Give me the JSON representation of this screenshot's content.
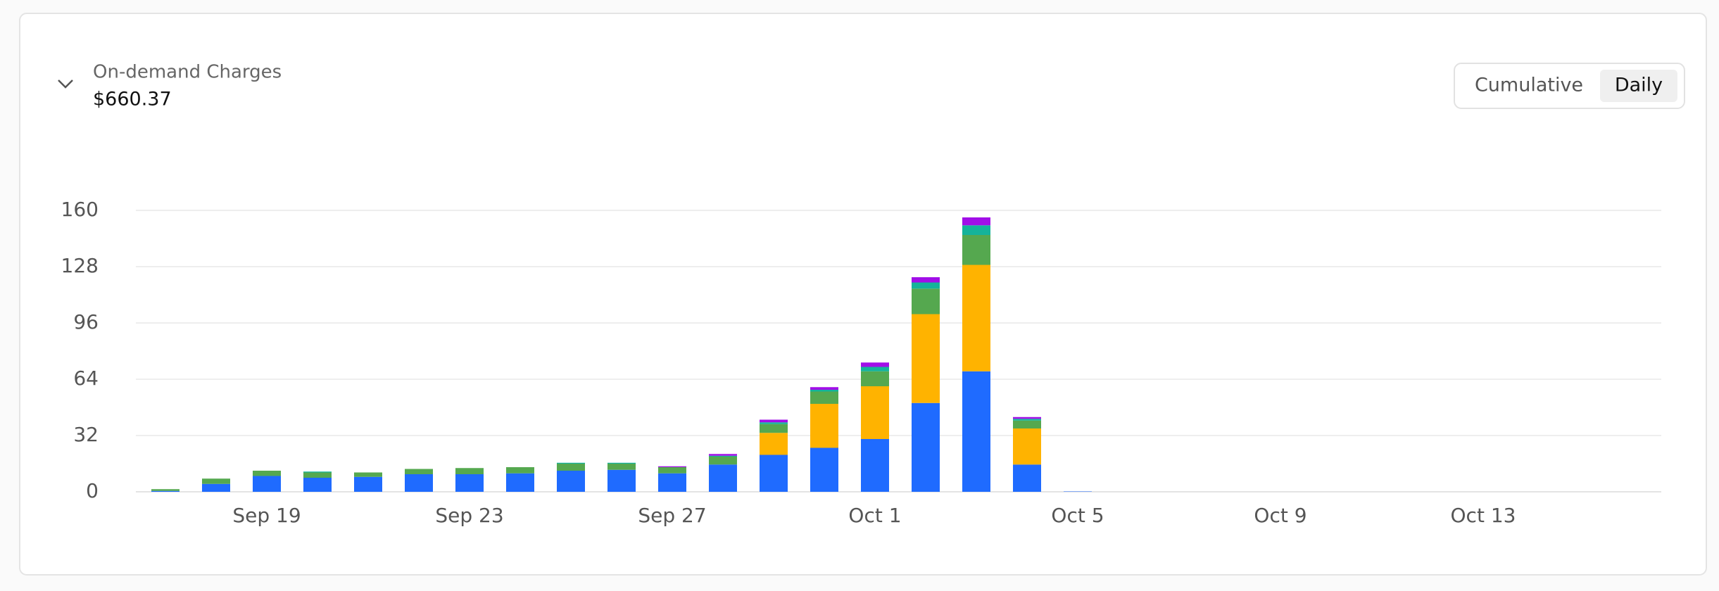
{
  "chart_data": {
    "type": "stacked_bar",
    "title": "On-demand Charges",
    "subtitle": "$660.37",
    "categories": [
      null,
      null,
      "Sep 19",
      null,
      null,
      null,
      "Sep 23",
      null,
      null,
      null,
      "Sep 27",
      null,
      null,
      null,
      "Oct 1",
      null,
      null,
      null,
      "Oct 5",
      null,
      null,
      null,
      "Oct 9",
      null,
      null,
      null,
      "Oct 13",
      null,
      null,
      null
    ],
    "series": [
      {
        "color": "#1f6bff",
        "values": [
          0.5,
          4.5,
          9,
          8,
          8.5,
          10,
          10,
          10.5,
          12,
          12.5,
          10.5,
          15.5,
          21,
          25,
          30,
          50.5,
          68.5,
          15.5,
          0.2,
          0,
          0,
          0,
          0,
          0,
          0,
          0,
          0,
          0,
          0,
          0
        ]
      },
      {
        "color": "#ffb300",
        "values": [
          0,
          0,
          0,
          0,
          0,
          0,
          0,
          0,
          0,
          0,
          0,
          0,
          12.5,
          25,
          30,
          50.5,
          60.5,
          20.5,
          0,
          0,
          0,
          0,
          0,
          0,
          0,
          0,
          0,
          0,
          0,
          0
        ]
      },
      {
        "color": "#55a84f",
        "values": [
          1,
          3,
          3,
          3,
          2.5,
          3,
          3.5,
          3.5,
          4,
          3.5,
          3.5,
          4.5,
          5,
          7,
          8.5,
          14.5,
          17,
          4.5,
          0,
          0,
          0,
          0,
          0,
          0,
          0,
          0,
          0,
          0,
          0,
          0
        ]
      },
      {
        "color": "#14b39a",
        "values": [
          0,
          0,
          0,
          0.5,
          0,
          0,
          0,
          0,
          0.5,
          0.5,
          0,
          0.5,
          1,
          1,
          2.5,
          3.5,
          5.5,
          1,
          0,
          0,
          0,
          0,
          0,
          0,
          0,
          0,
          0,
          0,
          0,
          0
        ]
      },
      {
        "color": "#a10ee8",
        "values": [
          0,
          0,
          0,
          0,
          0,
          0,
          0,
          0,
          0,
          0,
          0.5,
          1,
          1.5,
          1.5,
          2.5,
          3,
          4.5,
          1,
          0,
          0,
          0,
          0,
          0,
          0,
          0,
          0,
          0,
          0,
          0,
          0
        ]
      }
    ],
    "ylim": [
      0,
      160
    ],
    "yticks": [
      0,
      32,
      64,
      96,
      128,
      160
    ],
    "grid": true
  },
  "controls": {
    "options": [
      "Cumulative",
      "Daily"
    ]
  }
}
